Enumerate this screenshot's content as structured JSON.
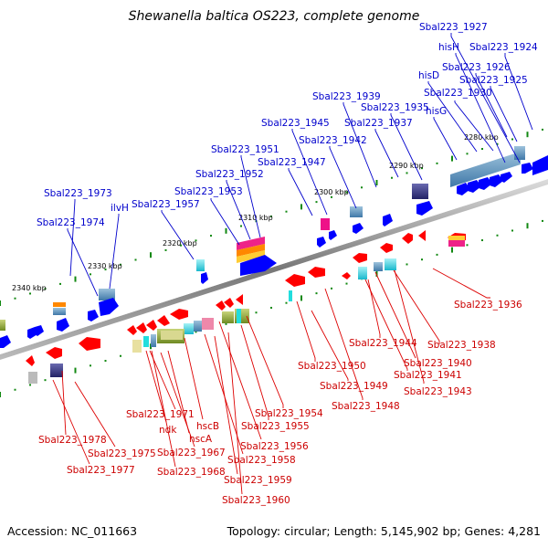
{
  "header": {
    "title": "Shewanella baltica OS223, complete genome"
  },
  "footer": {
    "accession": "Accession: NC_011663",
    "summary": "Topology: circular; Length: 5,145,902 bp; Genes: 4,281"
  },
  "scale": [
    "2280 kbp",
    "2290 kbp",
    "2300 kbp",
    "2310 kbp",
    "2320 kbp",
    "2330 kbp",
    "2340 kbp"
  ],
  "upper_labels": [
    "Sbal223_1927",
    "hisH",
    "Sbal223_1924",
    "Sbal223_1926",
    "hisD",
    "Sbal223_1925",
    "Sbal223_1930",
    "Sbal223_1939",
    "Sbal223_1935",
    "Sbal223_1945",
    "Sbal223_1937",
    "hisG",
    "Sbal223_1942",
    "Sbal223_1951",
    "Sbal223_1947",
    "Sbal223_1952",
    "Sbal223_1953",
    "Sbal223_1973",
    "ilvH",
    "Sbal223_1957",
    "Sbal223_1974"
  ],
  "lower_labels": [
    "Sbal223_1936",
    "Sbal223_1944",
    "Sbal223_1938",
    "Sbal223_1940",
    "Sbal223_1941",
    "Sbal223_1950",
    "Sbal223_1943",
    "Sbal223_1949",
    "Sbal223_1948",
    "Sbal223_1954",
    "Sbal223_1955",
    "Sbal223_1971",
    "ndk",
    "hscB",
    "hscA",
    "Sbal223_1956",
    "Sbal223_1978",
    "Sbal223_1967",
    "Sbal223_1975",
    "Sbal223_1958",
    "Sbal223_1977",
    "Sbal223_1968",
    "Sbal223_1959",
    "Sbal223_1960"
  ],
  "colors": {
    "forward_gene": "#0000ff",
    "reverse_gene": "#ff0000",
    "forward_label": "#0000cc",
    "reverse_label": "#cc0000",
    "tick": "#118811",
    "backbone": "#888888"
  }
}
